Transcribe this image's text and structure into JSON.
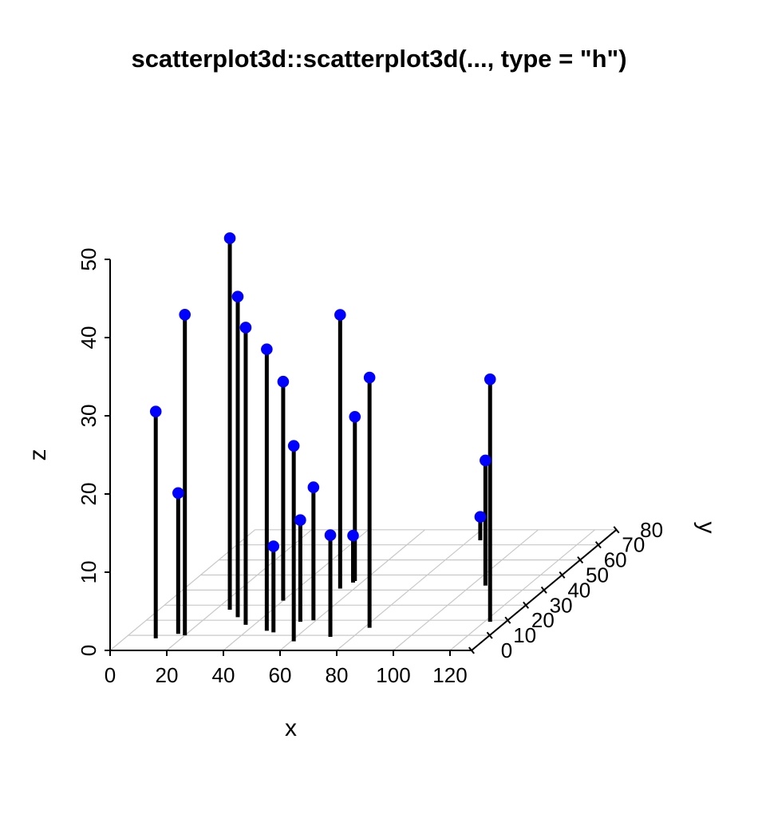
{
  "title": "scatterplot3d::scatterplot3d(..., type = \"h\")",
  "chart_data": {
    "type": "scatter",
    "subtype": "3d-scatter-with-vertical-drop-lines",
    "source_label": "scatterplot3d::scatterplot3d(..., type = \"h\")",
    "title": "scatterplot3d::scatterplot3d(..., type = \"h\")",
    "xlabel": "x",
    "ylabel": "y",
    "zlabel": "z",
    "x_ticks": [
      0,
      20,
      40,
      60,
      80,
      100,
      120
    ],
    "y_ticks": [
      0,
      10,
      20,
      30,
      40,
      50,
      60,
      70,
      80
    ],
    "z_ticks": [
      0,
      10,
      20,
      30,
      40,
      50
    ],
    "xlim": [
      0,
      128
    ],
    "ylim": [
      0,
      80
    ],
    "zlim": [
      0,
      50
    ],
    "grid": true,
    "legend": false,
    "point_symbol": "filled-circle",
    "colors": {
      "point": "#0000ff",
      "stem": "#000000",
      "axis": "#000000",
      "grid": "#c8c8c8",
      "text": "#000000",
      "background": "#ffffff"
    },
    "points": [
      {
        "x": 11,
        "y": 8,
        "z": 29
      },
      {
        "x": 17,
        "y": 11,
        "z": 18
      },
      {
        "x": 20,
        "y": 10,
        "z": 41
      },
      {
        "x": 25,
        "y": 27,
        "z": 47.5
      },
      {
        "x": 31,
        "y": 22,
        "z": 41
      },
      {
        "x": 37,
        "y": 17,
        "z": 38
      },
      {
        "x": 40,
        "y": 33,
        "z": 28
      },
      {
        "x": 47,
        "y": 13,
        "z": 36
      },
      {
        "x": 50,
        "y": 12,
        "z": 11
      },
      {
        "x": 55,
        "y": 19,
        "z": 13
      },
      {
        "x": 55,
        "y": 41,
        "z": 35
      },
      {
        "x": 57,
        "y": 45,
        "z": 6
      },
      {
        "x": 57,
        "y": 46,
        "z": 21
      },
      {
        "x": 59,
        "y": 20,
        "z": 17
      },
      {
        "x": 61,
        "y": 6,
        "z": 25
      },
      {
        "x": 72,
        "y": 9,
        "z": 13
      },
      {
        "x": 82,
        "y": 15,
        "z": 32
      },
      {
        "x": 84,
        "y": 73,
        "z": 3
      },
      {
        "x": 105,
        "y": 43,
        "z": 16
      },
      {
        "x": 122,
        "y": 19,
        "z": 31
      }
    ]
  }
}
